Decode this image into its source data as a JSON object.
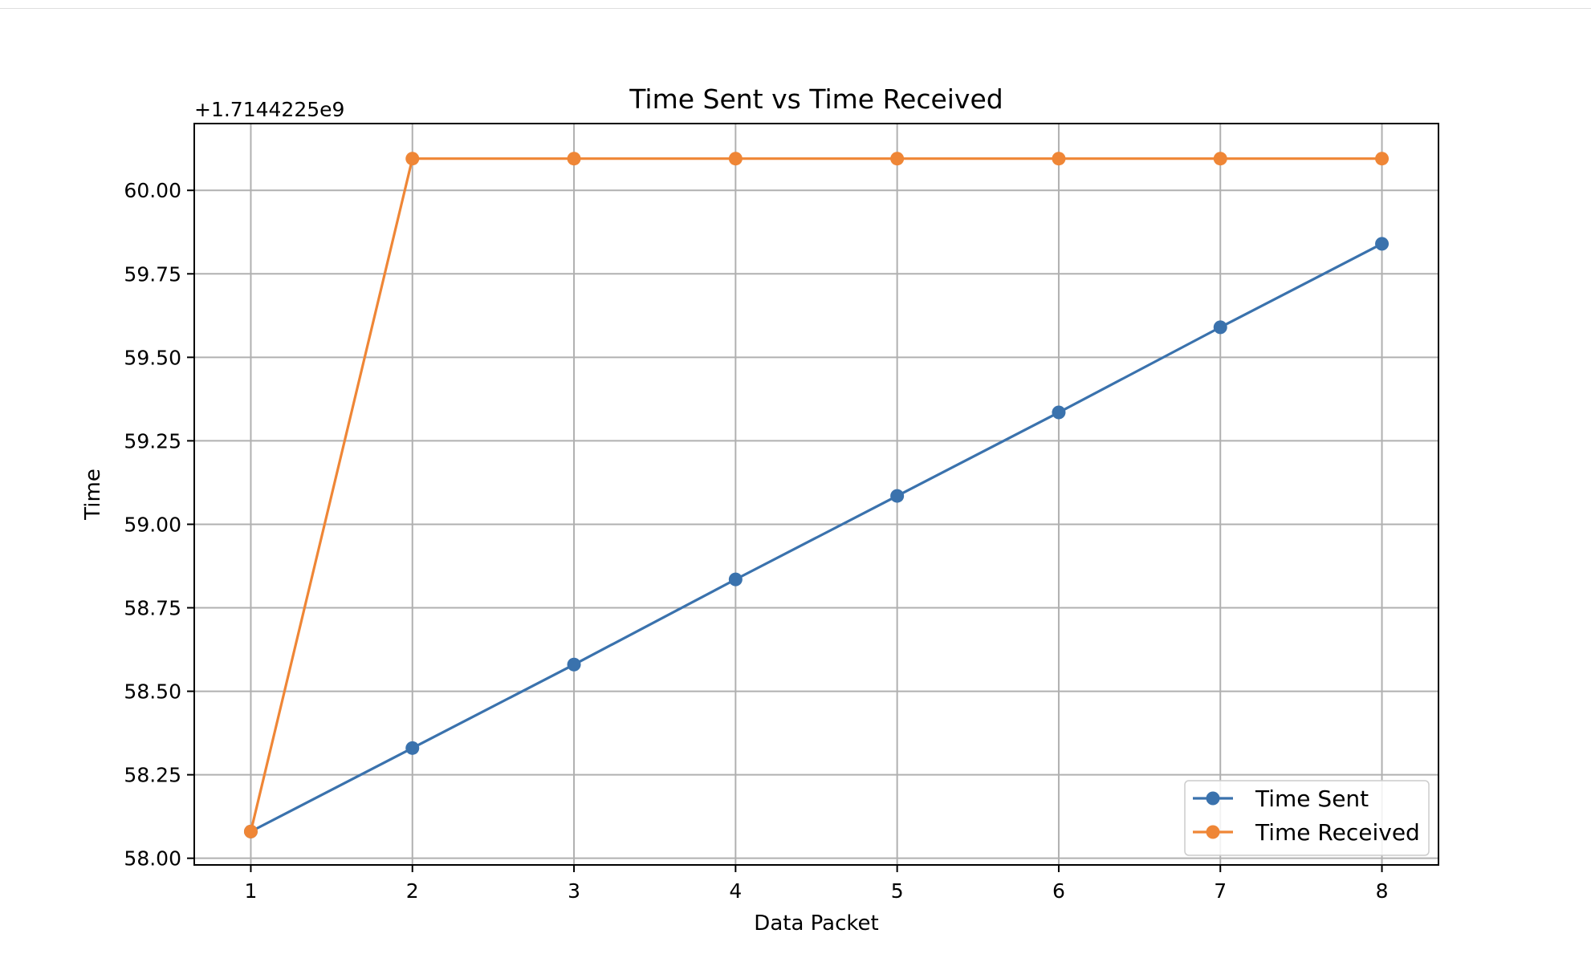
{
  "chart_data": {
    "type": "line",
    "title": "Time Sent vs Time Received",
    "xlabel": "Data Packet",
    "ylabel": "Time",
    "offset_label": "+1.7144225e9",
    "x": [
      1,
      2,
      3,
      4,
      5,
      6,
      7,
      8
    ],
    "xlim": [
      0.65,
      8.35
    ],
    "ylim": [
      57.98,
      60.2
    ],
    "x_ticks": [
      "1",
      "2",
      "3",
      "4",
      "5",
      "6",
      "7",
      "8"
    ],
    "y_ticks": [
      {
        "value": 58.0,
        "label": "58.00"
      },
      {
        "value": 58.25,
        "label": "58.25"
      },
      {
        "value": 58.5,
        "label": "58.50"
      },
      {
        "value": 58.75,
        "label": "58.75"
      },
      {
        "value": 59.0,
        "label": "59.00"
      },
      {
        "value": 59.25,
        "label": "59.25"
      },
      {
        "value": 59.5,
        "label": "59.50"
      },
      {
        "value": 59.75,
        "label": "59.75"
      },
      {
        "value": 60.0,
        "label": "60.00"
      }
    ],
    "grid": true,
    "legend_position": "lower-right",
    "series": [
      {
        "name": "Time Sent",
        "color": "#3a72ad",
        "marker": "circle",
        "values": [
          58.08,
          58.33,
          58.58,
          58.835,
          59.085,
          59.335,
          59.59,
          59.84
        ]
      },
      {
        "name": "Time Received",
        "color": "#ef8636",
        "marker": "circle",
        "values": [
          58.08,
          60.095,
          60.095,
          60.095,
          60.095,
          60.095,
          60.095,
          60.095
        ]
      }
    ]
  }
}
